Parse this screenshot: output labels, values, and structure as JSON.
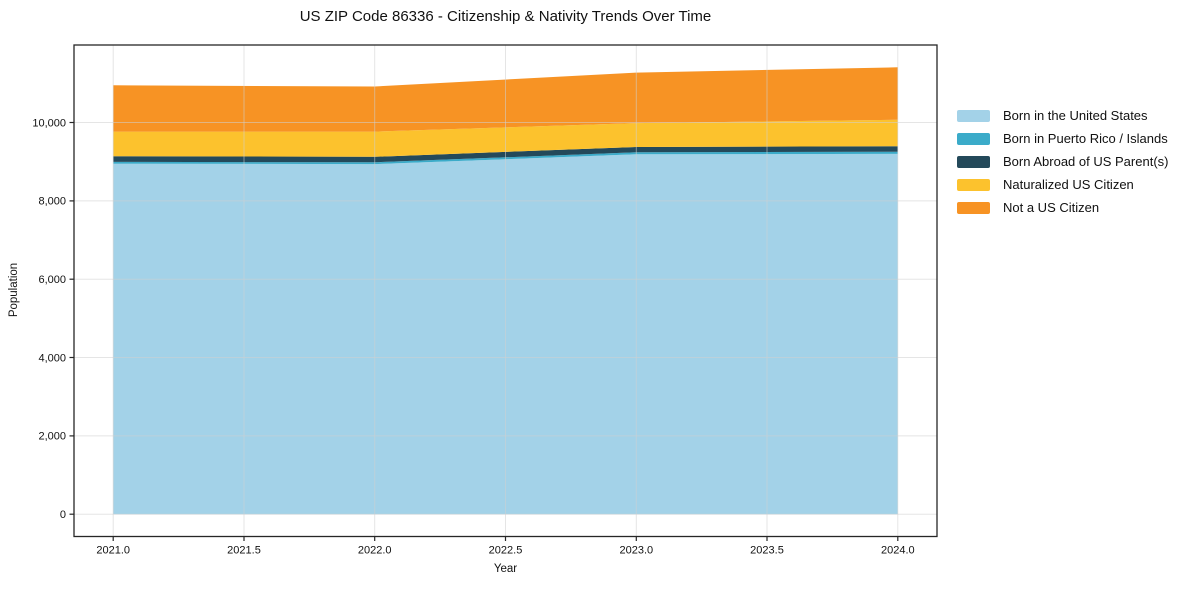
{
  "title": "US ZIP Code 86336 - Citizenship & Nativity Trends Over Time",
  "axes": {
    "x_label": "Year",
    "y_label": "Population"
  },
  "chart_data": {
    "type": "area",
    "stacked": true,
    "x": [
      2021,
      2022,
      2023,
      2024
    ],
    "series": [
      {
        "name": "Born in the United States",
        "color": "#a3d2e8",
        "values": [
          8950,
          8940,
          9190,
          9200
        ]
      },
      {
        "name": "Born in Puerto Rico / Islands",
        "color": "#3babc9",
        "values": [
          45,
          45,
          50,
          55
        ]
      },
      {
        "name": "Born Abroad of US Parent(s)",
        "color": "#24495a",
        "values": [
          145,
          140,
          135,
          140
        ]
      },
      {
        "name": "Naturalized US Citizen",
        "color": "#fcc22d",
        "values": [
          630,
          645,
          610,
          675
        ]
      },
      {
        "name": "Not a US Citizen",
        "color": "#f79324",
        "values": [
          1180,
          1150,
          1290,
          1340
        ]
      }
    ],
    "totals": [
      10950,
      10920,
      11275,
      11410
    ],
    "xlim": [
      2020.85,
      2024.15
    ],
    "ylim": [
      -570,
      11980
    ],
    "grid": true,
    "legend_position": "right-outside",
    "xticks": {
      "values": [
        2021.0,
        2021.5,
        2022.0,
        2022.5,
        2023.0,
        2023.5,
        2024.0
      ],
      "labels": [
        "2021.0",
        "2021.5",
        "2022.0",
        "2022.5",
        "2023.0",
        "2023.5",
        "2024.0"
      ]
    },
    "yticks": {
      "values": [
        0,
        2000,
        4000,
        6000,
        8000,
        10000
      ],
      "labels": [
        "0",
        "2,000",
        "4,000",
        "6,000",
        "8,000",
        "10,000"
      ]
    }
  }
}
